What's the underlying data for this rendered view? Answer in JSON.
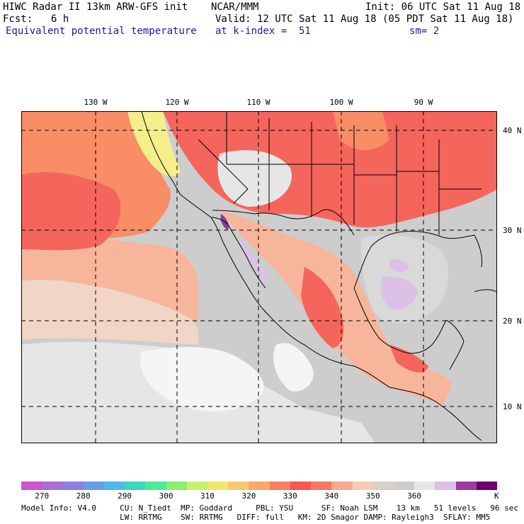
{
  "header": {
    "title": "HIWC Radar II 13km ARW-GFS init",
    "org": "NCAR/MMM",
    "init": "Init: 06 UTC Sat 11 Aug 18",
    "fcst_label": "Fcst:",
    "fcst_value": "6 h",
    "valid": "Valid: 12 UTC Sat 11 Aug 18 (05 PDT Sat 11 Aug 18)",
    "field": "Equivalent potential temperature",
    "level": "at k-index =  51",
    "smoothing": "sm= 2"
  },
  "map": {
    "lon_labels": [
      "130 W",
      "120 W",
      "110 W",
      "100 W",
      "90 W"
    ],
    "lat_labels": [
      "40 N",
      "30 N",
      "20 N",
      "10 N"
    ],
    "colors": {
      "ocean_warm": "#f4655c",
      "ocean_mid": "#f88d66",
      "ocean_light": "#f7b59c",
      "ocean_pale": "#f1d6c7",
      "grey": "#cdcdcd",
      "light_grey": "#e6e6e6",
      "white": "#f5f5f5",
      "yellow": "#f4ef8a",
      "lilac": "#dcc0e6",
      "purple": "#8b3c9a"
    }
  },
  "colorbar": {
    "colors": [
      "#cc55cc",
      "#a66fd0",
      "#8a80e0",
      "#6a9ce8",
      "#4fb8e8",
      "#3ad7c0",
      "#50e89a",
      "#8aee6e",
      "#c8f070",
      "#f0e86a",
      "#f8c870",
      "#f8a86a",
      "#f88060",
      "#f45a50",
      "#f47866",
      "#f8a890",
      "#f4cbb8",
      "#d7cfc9",
      "#cdcdcd",
      "#e6e6e6",
      "#dcc0e6",
      "#9a3c9a",
      "#6e006e"
    ],
    "labels": [
      "270",
      "280",
      "290",
      "300",
      "310",
      "320",
      "330",
      "340",
      "350",
      "360"
    ],
    "unit": "K"
  },
  "footer": {
    "line1": "Model Info: V4.0     CU: N_Tiedt  MP: Goddard     PBL: YSU      SF: Noah LSM    13 km   51 levels   96 sec",
    "line2": "                     LW: RRTMG    SW: RRTMG   DIFF: full   KM: 2D Smagor DAMP: Rayleigh3  SFLAY: MM5"
  }
}
